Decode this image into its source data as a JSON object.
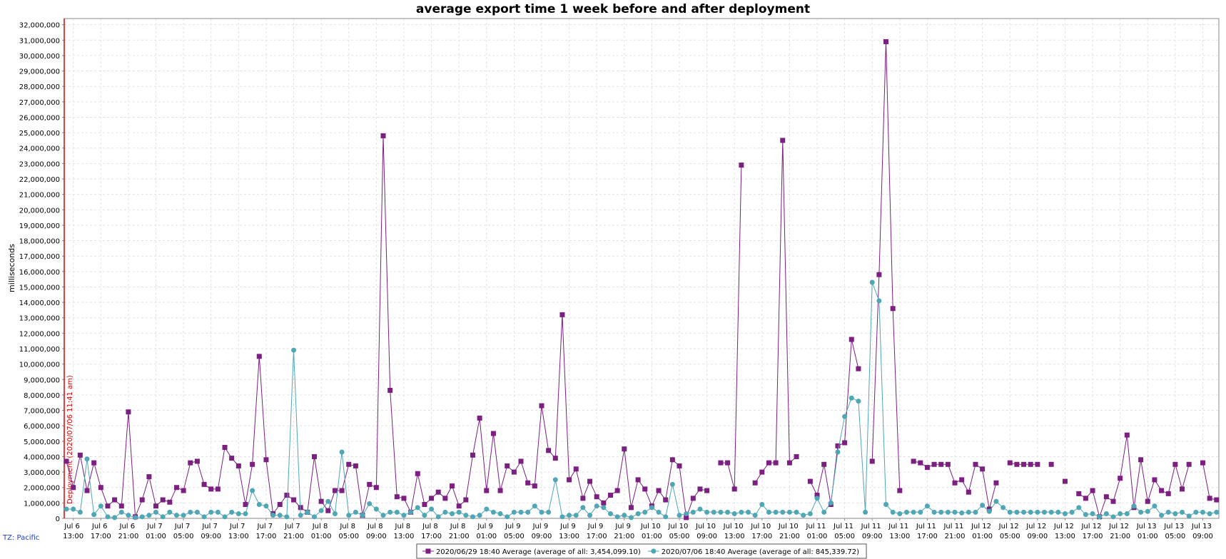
{
  "chart_data": {
    "type": "line",
    "title": "average export time 1 week before and after deployment",
    "y_label": "milliseconds",
    "timezone": "TZ: Pacific",
    "deployment": {
      "label": "Deployment (2020/07/06 11:41 am)",
      "x": "Jul 6 11:41",
      "color": "#dd0000"
    },
    "grid": true,
    "xlim": [
      "Jul 6 11:41",
      "Jul 13 11:20"
    ],
    "ylim": [
      0,
      32400000
    ],
    "xticks": [
      "Jul 6 13:00",
      "Jul 6 17:00",
      "Jul 6 21:00",
      "Jul 7 01:00",
      "Jul 7 05:00",
      "Jul 7 09:00",
      "Jul 7 13:00",
      "Jul 7 17:00",
      "Jul 7 21:00",
      "Jul 8 01:00",
      "Jul 8 05:00",
      "Jul 8 09:00",
      "Jul 8 13:00",
      "Jul 8 17:00",
      "Jul 8 21:00",
      "Jul 9 01:00",
      "Jul 9 05:00",
      "Jul 9 09:00",
      "Jul 9 13:00",
      "Jul 9 17:00",
      "Jul 9 21:00",
      "Jul 10 01:00",
      "Jul 10 05:00",
      "Jul 10 09:00",
      "Jul 10 13:00",
      "Jul 10 17:00",
      "Jul 10 21:00",
      "Jul 11 01:00",
      "Jul 11 05:00",
      "Jul 11 09:00",
      "Jul 11 13:00",
      "Jul 11 17:00",
      "Jul 11 21:00",
      "Jul 12 01:00",
      "Jul 12 05:00",
      "Jul 12 09:00",
      "Jul 12 13:00",
      "Jul 12 17:00",
      "Jul 12 21:00",
      "Jul 13 01:00",
      "Jul 13 05:00",
      "Jul 13 09:00"
    ],
    "yticks": [
      0,
      {
        "value": 1000000,
        "label": "1,000,000"
      },
      {
        "value": 2000000,
        "label": "2,000,000"
      },
      {
        "value": 3000000,
        "label": "3,000,000"
      },
      {
        "value": 4000000,
        "label": "4,000,000"
      },
      {
        "value": 5000000,
        "label": "5,000,000"
      },
      {
        "value": 6000000,
        "label": "6,000,000"
      },
      {
        "value": 7000000,
        "label": "7,000,000"
      },
      {
        "value": 8000000,
        "label": "8,000,000"
      },
      {
        "value": 9000000,
        "label": "9,000,000"
      },
      {
        "value": 10000000,
        "label": "10,000,000"
      },
      {
        "value": 11000000,
        "label": "11,000,000"
      },
      {
        "value": 12000000,
        "label": "12,000,000"
      },
      {
        "value": 13000000,
        "label": "13,000,000"
      },
      {
        "value": 14000000,
        "label": "14,000,000"
      },
      {
        "value": 15000000,
        "label": "15,000,000"
      },
      {
        "value": 16000000,
        "label": "16,000,000"
      },
      {
        "value": 17000000,
        "label": "17,000,000"
      },
      {
        "value": 18000000,
        "label": "18,000,000"
      },
      {
        "value": 19000000,
        "label": "19,000,000"
      },
      {
        "value": 20000000,
        "label": "20,000,000"
      },
      {
        "value": 21000000,
        "label": "21,000,000"
      },
      {
        "value": 22000000,
        "label": "22,000,000"
      },
      {
        "value": 23000000,
        "label": "23,000,000"
      },
      {
        "value": 24000000,
        "label": "24,000,000"
      },
      {
        "value": 25000000,
        "label": "25,000,000"
      },
      {
        "value": 26000000,
        "label": "26,000,000"
      },
      {
        "value": 27000000,
        "label": "27,000,000"
      },
      {
        "value": 28000000,
        "label": "28,000,000"
      },
      {
        "value": 29000000,
        "label": "29,000,000"
      },
      {
        "value": 30000000,
        "label": "30,000,000"
      },
      {
        "value": 31000000,
        "label": "31,000,000"
      },
      {
        "value": 32000000,
        "label": "32,000,000"
      }
    ],
    "x": [
      "Jul 6 12:00",
      "Jul 6 13:00",
      "Jul 6 14:00",
      "Jul 6 15:00",
      "Jul 6 16:00",
      "Jul 6 17:00",
      "Jul 6 18:00",
      "Jul 6 19:00",
      "Jul 6 20:00",
      "Jul 6 21:00",
      "Jul 6 22:00",
      "Jul 6 23:00",
      "Jul 7 00:00",
      "Jul 7 01:00",
      "Jul 7 02:00",
      "Jul 7 03:00",
      "Jul 7 04:00",
      "Jul 7 05:00",
      "Jul 7 06:00",
      "Jul 7 07:00",
      "Jul 7 08:00",
      "Jul 7 09:00",
      "Jul 7 10:00",
      "Jul 7 11:00",
      "Jul 7 12:00",
      "Jul 7 13:00",
      "Jul 7 14:00",
      "Jul 7 15:00",
      "Jul 7 16:00",
      "Jul 7 17:00",
      "Jul 7 18:00",
      "Jul 7 19:00",
      "Jul 7 20:00",
      "Jul 7 21:00",
      "Jul 7 22:00",
      "Jul 7 23:00",
      "Jul 8 00:00",
      "Jul 8 01:00",
      "Jul 8 02:00",
      "Jul 8 03:00",
      "Jul 8 04:00",
      "Jul 8 05:00",
      "Jul 8 06:00",
      "Jul 8 07:00",
      "Jul 8 08:00",
      "Jul 8 09:00",
      "Jul 8 10:00",
      "Jul 8 11:00",
      "Jul 8 12:00",
      "Jul 8 13:00",
      "Jul 8 14:00",
      "Jul 8 15:00",
      "Jul 8 16:00",
      "Jul 8 17:00",
      "Jul 8 18:00",
      "Jul 8 19:00",
      "Jul 8 20:00",
      "Jul 8 21:00",
      "Jul 8 22:00",
      "Jul 8 23:00",
      "Jul 9 00:00",
      "Jul 9 01:00",
      "Jul 9 02:00",
      "Jul 9 03:00",
      "Jul 9 04:00",
      "Jul 9 05:00",
      "Jul 9 06:00",
      "Jul 9 07:00",
      "Jul 9 08:00",
      "Jul 9 09:00",
      "Jul 9 10:00",
      "Jul 9 11:00",
      "Jul 9 12:00",
      "Jul 9 13:00",
      "Jul 9 14:00",
      "Jul 9 15:00",
      "Jul 9 16:00",
      "Jul 9 17:00",
      "Jul 9 18:00",
      "Jul 9 19:00",
      "Jul 9 20:00",
      "Jul 9 21:00",
      "Jul 9 22:00",
      "Jul 9 23:00",
      "Jul 10 00:00",
      "Jul 10 01:00",
      "Jul 10 02:00",
      "Jul 10 03:00",
      "Jul 10 04:00",
      "Jul 10 05:00",
      "Jul 10 06:00",
      "Jul 10 07:00",
      "Jul 10 08:00",
      "Jul 10 09:00",
      "Jul 10 10:00",
      "Jul 10 11:00",
      "Jul 10 12:00",
      "Jul 10 13:00",
      "Jul 10 14:00",
      "Jul 10 15:00",
      "Jul 10 16:00",
      "Jul 10 17:00",
      "Jul 10 18:00",
      "Jul 10 19:00",
      "Jul 10 20:00",
      "Jul 10 21:00",
      "Jul 10 22:00",
      "Jul 10 23:00",
      "Jul 11 00:00",
      "Jul 11 01:00",
      "Jul 11 02:00",
      "Jul 11 03:00",
      "Jul 11 04:00",
      "Jul 11 05:00",
      "Jul 11 06:00",
      "Jul 11 07:00",
      "Jul 11 08:00",
      "Jul 11 09:00",
      "Jul 11 10:00",
      "Jul 11 11:00",
      "Jul 11 12:00",
      "Jul 11 13:00",
      "Jul 11 14:00",
      "Jul 11 15:00",
      "Jul 11 16:00",
      "Jul 11 17:00",
      "Jul 11 18:00",
      "Jul 11 19:00",
      "Jul 11 20:00",
      "Jul 11 21:00",
      "Jul 11 22:00",
      "Jul 11 23:00",
      "Jul 12 00:00",
      "Jul 12 01:00",
      "Jul 12 02:00",
      "Jul 12 03:00",
      "Jul 12 04:00",
      "Jul 12 05:00",
      "Jul 12 06:00",
      "Jul 12 07:00",
      "Jul 12 08:00",
      "Jul 12 09:00",
      "Jul 12 10:00",
      "Jul 12 11:00",
      "Jul 12 12:00",
      "Jul 12 13:00",
      "Jul 12 14:00",
      "Jul 12 15:00",
      "Jul 12 16:00",
      "Jul 12 17:00",
      "Jul 12 18:00",
      "Jul 12 19:00",
      "Jul 12 20:00",
      "Jul 12 21:00",
      "Jul 12 22:00",
      "Jul 12 23:00",
      "Jul 13 00:00",
      "Jul 13 01:00",
      "Jul 13 02:00",
      "Jul 13 03:00",
      "Jul 13 04:00",
      "Jul 13 05:00",
      "Jul 13 06:00",
      "Jul 13 07:00",
      "Jul 13 08:00",
      "Jul 13 09:00",
      "Jul 13 10:00",
      "Jul 13 11:00"
    ],
    "series": [
      {
        "name": "2020/06/29 18:40 Average (average of all: 3,454,099.10)",
        "color": "#7b1f80",
        "marker": "square",
        "values": [
          3700000,
          2000000,
          4100000,
          1800000,
          3600000,
          2000000,
          800000,
          1200000,
          800000,
          6900000,
          100000,
          1200000,
          2700000,
          800000,
          1200000,
          1050000,
          2000000,
          1800000,
          3600000,
          3700000,
          2200000,
          1900000,
          1900000,
          4600000,
          3900000,
          3400000,
          900000,
          3500000,
          10500000,
          3800000,
          300000,
          900000,
          1500000,
          1200000,
          700000,
          400000,
          4000000,
          1100000,
          500000,
          1800000,
          1800000,
          3500000,
          3400000,
          200000,
          2200000,
          2000000,
          24800000,
          8300000,
          1400000,
          1300000,
          400000,
          2900000,
          900000,
          1300000,
          1700000,
          1300000,
          2100000,
          800000,
          1200000,
          4100000,
          6500000,
          1800000,
          5500000,
          1800000,
          3400000,
          3000000,
          3700000,
          2300000,
          2100000,
          7300000,
          4400000,
          3900000,
          13200000,
          2500000,
          3200000,
          1300000,
          2400000,
          1400000,
          1000000,
          1500000,
          1800000,
          4500000,
          700000,
          2500000,
          1900000,
          800000,
          1800000,
          1200000,
          3800000,
          3400000,
          50000,
          1300000,
          1900000,
          1800000,
          null,
          3600000,
          3600000,
          1900000,
          22900000,
          null,
          2300000,
          3000000,
          3600000,
          3600000,
          24500000,
          3600000,
          4000000,
          null,
          2400000,
          1500000,
          3500000,
          900000,
          4700000,
          4900000,
          11600000,
          9700000,
          null,
          3700000,
          15800000,
          30900000,
          13600000,
          1800000,
          null,
          3700000,
          3600000,
          3300000,
          3500000,
          3500000,
          3500000,
          2300000,
          2500000,
          1700000,
          3500000,
          3200000,
          600000,
          2300000,
          null,
          3600000,
          3500000,
          3500000,
          3500000,
          3500000,
          null,
          3500000,
          null,
          2400000,
          null,
          1600000,
          1300000,
          1800000,
          100000,
          1400000,
          1100000,
          2600000,
          5400000,
          700000,
          3800000,
          1100000,
          2500000,
          1800000,
          1600000,
          3500000,
          1900000,
          3500000,
          null,
          3600000,
          1300000,
          1200000
        ]
      },
      {
        "name": "2020/07/06 18:40 Average (average of all: 845,339.72)",
        "color": "#4fa6b5",
        "marker": "circle",
        "values": [
          600000,
          600000,
          400000,
          3850000,
          250000,
          800000,
          100000,
          50000,
          400000,
          200000,
          50000,
          100000,
          200000,
          400000,
          100000,
          400000,
          200000,
          200000,
          400000,
          400000,
          100000,
          400000,
          400000,
          100000,
          400000,
          300000,
          300000,
          1800000,
          900000,
          800000,
          200000,
          200000,
          100000,
          10900000,
          200000,
          400000,
          100000,
          500000,
          1100000,
          300000,
          4300000,
          200000,
          400000,
          200000,
          950000,
          600000,
          200000,
          400000,
          400000,
          200000,
          400000,
          700000,
          200000,
          600000,
          100000,
          400000,
          300000,
          400000,
          200000,
          100000,
          200000,
          600000,
          400000,
          300000,
          100000,
          400000,
          400000,
          400000,
          800000,
          400000,
          400000,
          2500000,
          100000,
          200000,
          200000,
          700000,
          200000,
          800000,
          700000,
          300000,
          100000,
          200000,
          50000,
          300000,
          400000,
          700000,
          400000,
          100000,
          2200000,
          200000,
          300000,
          400000,
          600000,
          400000,
          400000,
          400000,
          400000,
          300000,
          400000,
          400000,
          200000,
          900000,
          400000,
          400000,
          400000,
          400000,
          400000,
          200000,
          300000,
          1300000,
          400000,
          1000000,
          4300000,
          6600000,
          7800000,
          7600000,
          400000,
          15300000,
          14100000,
          900000,
          400000,
          300000,
          400000,
          400000,
          400000,
          800000,
          400000,
          400000,
          400000,
          400000,
          350000,
          400000,
          400000,
          850000,
          450000,
          1100000,
          700000,
          400000,
          400000,
          400000,
          400000,
          400000,
          400000,
          400000,
          400000,
          300000,
          400000,
          700000,
          250000,
          300000,
          100000,
          300000,
          100000,
          300000,
          300000,
          800000,
          400000,
          450000,
          800000,
          200000,
          400000,
          300000,
          400000,
          150000,
          400000,
          400000,
          300000,
          400000
        ]
      }
    ]
  }
}
